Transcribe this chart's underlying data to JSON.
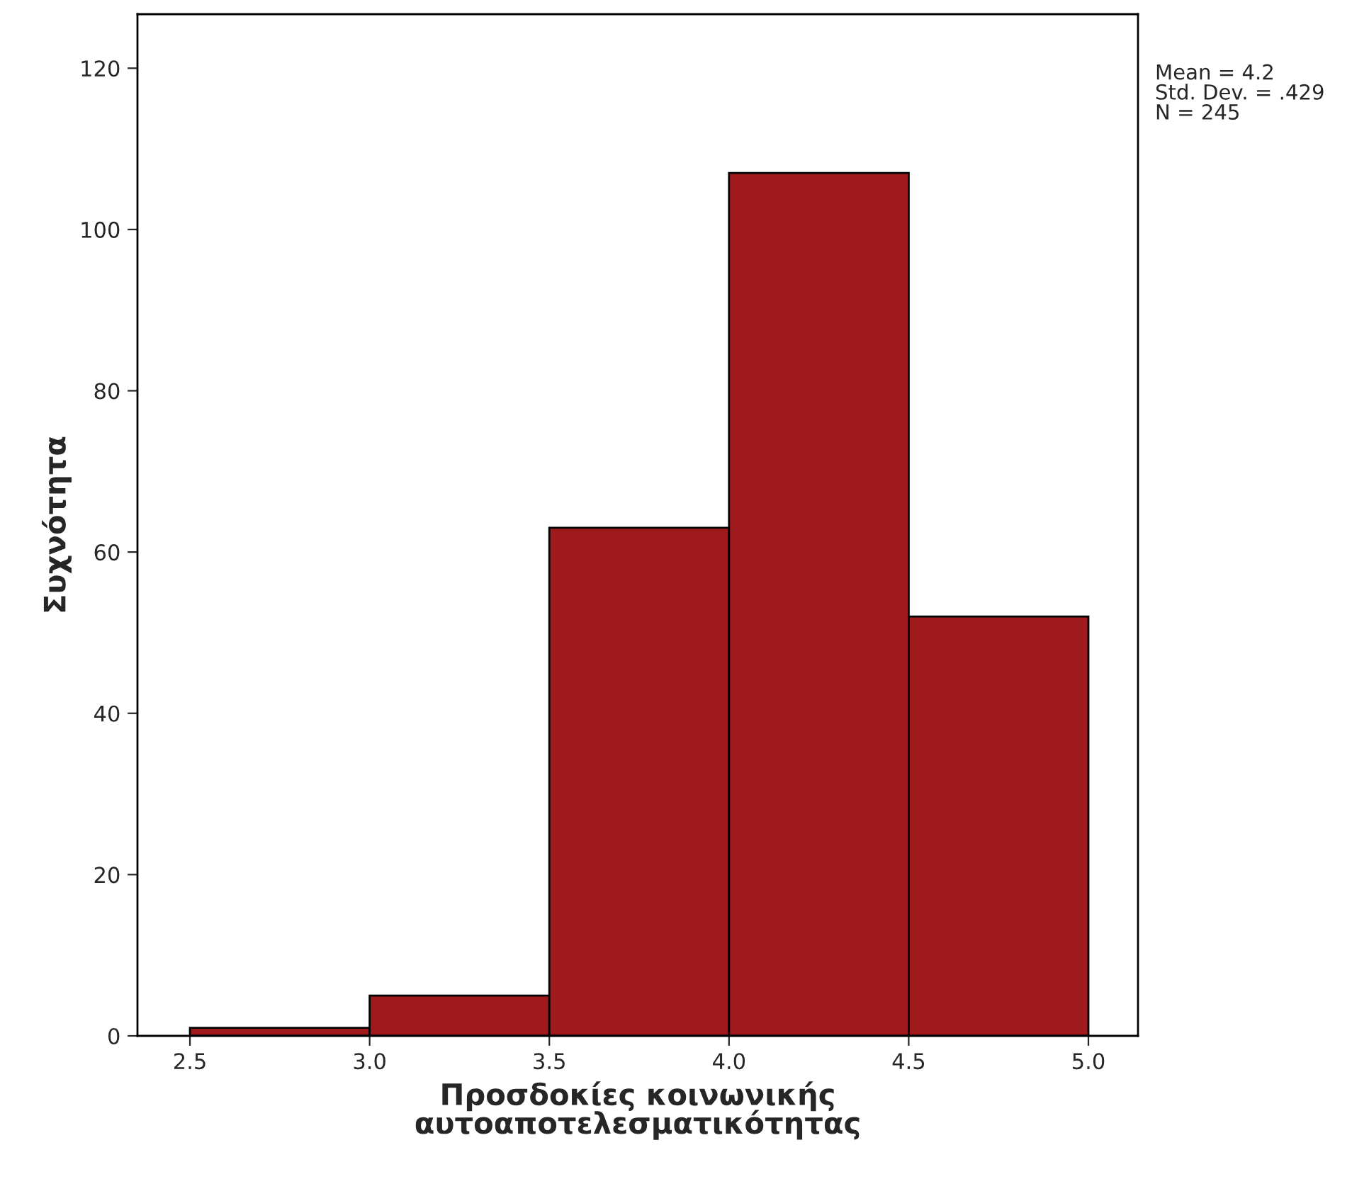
{
  "chart_data": {
    "type": "histogram",
    "xlabel": "Προσδοκίες κοινωνικής\nαυτοαποτελεσματικότητας",
    "ylabel": "Συχνότητα",
    "bins": [
      2.5,
      3.0,
      3.5,
      4.0,
      4.5,
      5.0
    ],
    "values": [
      1,
      5,
      63,
      107,
      52
    ],
    "color": "#9e1a1d",
    "xlim": [
      2.354,
      5.138
    ],
    "ylim": [
      0,
      126.7
    ],
    "xticks": [
      {
        "value": 2.5,
        "label": "2.5"
      },
      {
        "value": 3.0,
        "label": "3.0"
      },
      {
        "value": 3.5,
        "label": "3.5"
      },
      {
        "value": 4.0,
        "label": "4.0"
      },
      {
        "value": 4.5,
        "label": "4.5"
      },
      {
        "value": 5.0,
        "label": "5.0"
      }
    ],
    "yticks": [
      0,
      20,
      40,
      60,
      80,
      100,
      120
    ],
    "annotations": [
      "Mean = 4.2\nStd. Dev. = .429\nN = 245"
    ]
  }
}
